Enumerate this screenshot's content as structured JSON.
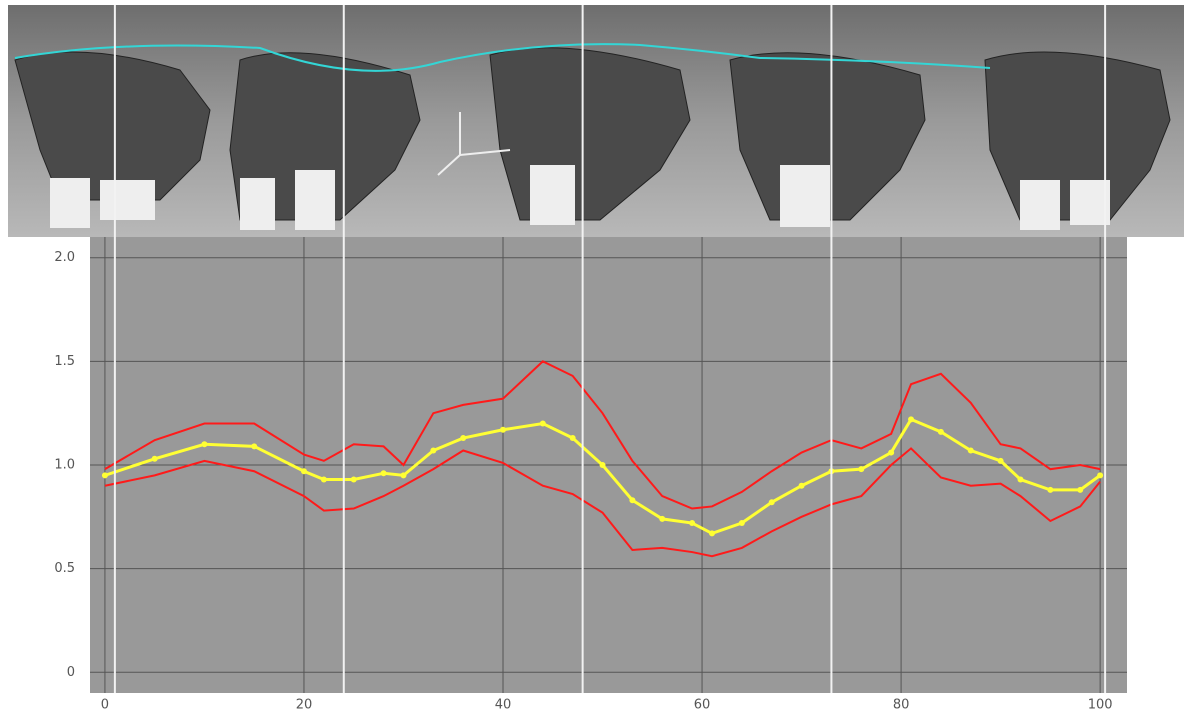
{
  "chart_data": {
    "type": "line",
    "x": [
      0,
      5,
      10,
      15,
      20,
      22,
      25,
      28,
      30,
      33,
      36,
      40,
      44,
      47,
      50,
      53,
      56,
      59,
      61,
      64,
      67,
      70,
      73,
      76,
      79,
      81,
      84,
      87,
      90,
      92,
      95,
      98,
      100
    ],
    "series": [
      {
        "color": "#ff1a1a",
        "values": [
          0.98,
          1.12,
          1.2,
          1.2,
          1.05,
          1.02,
          1.1,
          1.09,
          1.0,
          1.25,
          1.29,
          1.32,
          1.5,
          1.43,
          1.25,
          1.02,
          0.85,
          0.79,
          0.8,
          0.87,
          0.97,
          1.06,
          1.12,
          1.08,
          1.15,
          1.39,
          1.44,
          1.3,
          1.1,
          1.08,
          0.98,
          1.0,
          0.98
        ]
      },
      {
        "color": "#ffff33",
        "markers": true,
        "values": [
          0.95,
          1.03,
          1.1,
          1.09,
          0.97,
          0.93,
          0.93,
          0.96,
          0.95,
          1.07,
          1.13,
          1.17,
          1.2,
          1.13,
          1.0,
          0.83,
          0.74,
          0.72,
          0.67,
          0.72,
          0.82,
          0.9,
          0.97,
          0.98,
          1.06,
          1.22,
          1.16,
          1.07,
          1.02,
          0.93,
          0.88,
          0.88,
          0.95
        ]
      },
      {
        "color": "#ff1a1a",
        "values": [
          0.9,
          0.95,
          1.02,
          0.97,
          0.85,
          0.78,
          0.79,
          0.85,
          0.9,
          0.98,
          1.07,
          1.01,
          0.9,
          0.86,
          0.77,
          0.59,
          0.6,
          0.58,
          0.56,
          0.6,
          0.68,
          0.75,
          0.81,
          0.85,
          1.0,
          1.08,
          0.94,
          0.9,
          0.91,
          0.85,
          0.73,
          0.8,
          0.92
        ]
      }
    ],
    "phase_lines": [
      1,
      24,
      48,
      73,
      100.5
    ],
    "xlim": [
      -1.5,
      102.7
    ],
    "ylim": [
      -0.1,
      2.1
    ],
    "xticks": [
      0,
      20,
      40,
      60,
      80,
      100
    ],
    "yticks": [
      0,
      0.5,
      {
        "value": 1,
        "label": "1.0"
      },
      1.5,
      {
        "value": 2,
        "label": "2.0"
      }
    ],
    "grid": true
  }
}
